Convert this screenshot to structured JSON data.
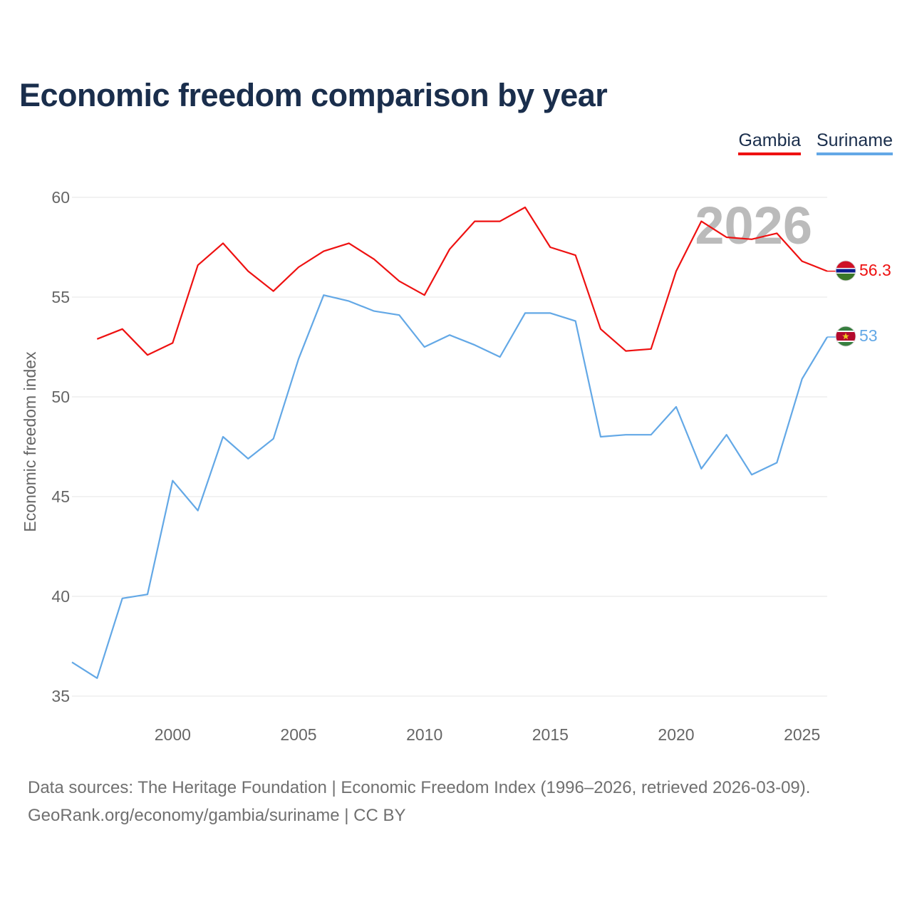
{
  "chart_data": {
    "type": "line",
    "title": "Economic freedom comparison by year",
    "ylabel": "Economic freedom index",
    "xlabel": "",
    "xlim": [
      1996,
      2026
    ],
    "ylim": [
      35,
      60
    ],
    "yticks": [
      35,
      40,
      45,
      50,
      55,
      60
    ],
    "xticks": [
      2000,
      2005,
      2010,
      2015,
      2020,
      2025
    ],
    "watermark_year": "2026",
    "series": [
      {
        "name": "Gambia",
        "color": "#ee1111",
        "end_label": "56.3",
        "points": [
          [
            1997,
            52.9
          ],
          [
            1998,
            53.4
          ],
          [
            1999,
            52.1
          ],
          [
            2000,
            52.7
          ],
          [
            2001,
            56.6
          ],
          [
            2002,
            57.7
          ],
          [
            2003,
            56.3
          ],
          [
            2004,
            55.3
          ],
          [
            2005,
            56.5
          ],
          [
            2006,
            57.3
          ],
          [
            2007,
            57.7
          ],
          [
            2008,
            56.9
          ],
          [
            2009,
            55.8
          ],
          [
            2010,
            55.1
          ],
          [
            2011,
            57.4
          ],
          [
            2012,
            58.8
          ],
          [
            2013,
            58.8
          ],
          [
            2014,
            59.5
          ],
          [
            2015,
            57.5
          ],
          [
            2016,
            57.1
          ],
          [
            2017,
            53.4
          ],
          [
            2018,
            52.3
          ],
          [
            2019,
            52.4
          ],
          [
            2020,
            56.3
          ],
          [
            2021,
            58.8
          ],
          [
            2022,
            58.0
          ],
          [
            2023,
            57.9
          ],
          [
            2024,
            58.2
          ],
          [
            2025,
            56.8
          ],
          [
            2026,
            56.3
          ]
        ]
      },
      {
        "name": "Suriname",
        "color": "#63a8e6",
        "end_label": "53",
        "points": [
          [
            1996,
            36.7
          ],
          [
            1997,
            35.9
          ],
          [
            1998,
            39.9
          ],
          [
            1999,
            40.1
          ],
          [
            2000,
            45.8
          ],
          [
            2001,
            44.3
          ],
          [
            2002,
            48.0
          ],
          [
            2003,
            46.9
          ],
          [
            2004,
            47.9
          ],
          [
            2005,
            51.9
          ],
          [
            2006,
            55.1
          ],
          [
            2007,
            54.8
          ],
          [
            2008,
            54.3
          ],
          [
            2009,
            54.1
          ],
          [
            2010,
            52.5
          ],
          [
            2011,
            53.1
          ],
          [
            2012,
            52.6
          ],
          [
            2013,
            52.0
          ],
          [
            2014,
            54.2
          ],
          [
            2015,
            54.2
          ],
          [
            2016,
            53.8
          ],
          [
            2017,
            48.0
          ],
          [
            2018,
            48.1
          ],
          [
            2019,
            48.1
          ],
          [
            2020,
            49.5
          ],
          [
            2021,
            46.4
          ],
          [
            2022,
            48.1
          ],
          [
            2023,
            46.1
          ],
          [
            2024,
            46.7
          ],
          [
            2025,
            50.9
          ],
          [
            2026,
            53.0
          ]
        ]
      }
    ]
  },
  "legend": {
    "gambia": "Gambia",
    "suriname": "Suriname"
  },
  "footer": {
    "line1": "Data sources: The Heritage Foundation | Economic Freedom Index (1996–2026, retrieved 2026-03-09).",
    "line2": "GeoRank.org/economy/gambia/suriname | CC BY"
  }
}
